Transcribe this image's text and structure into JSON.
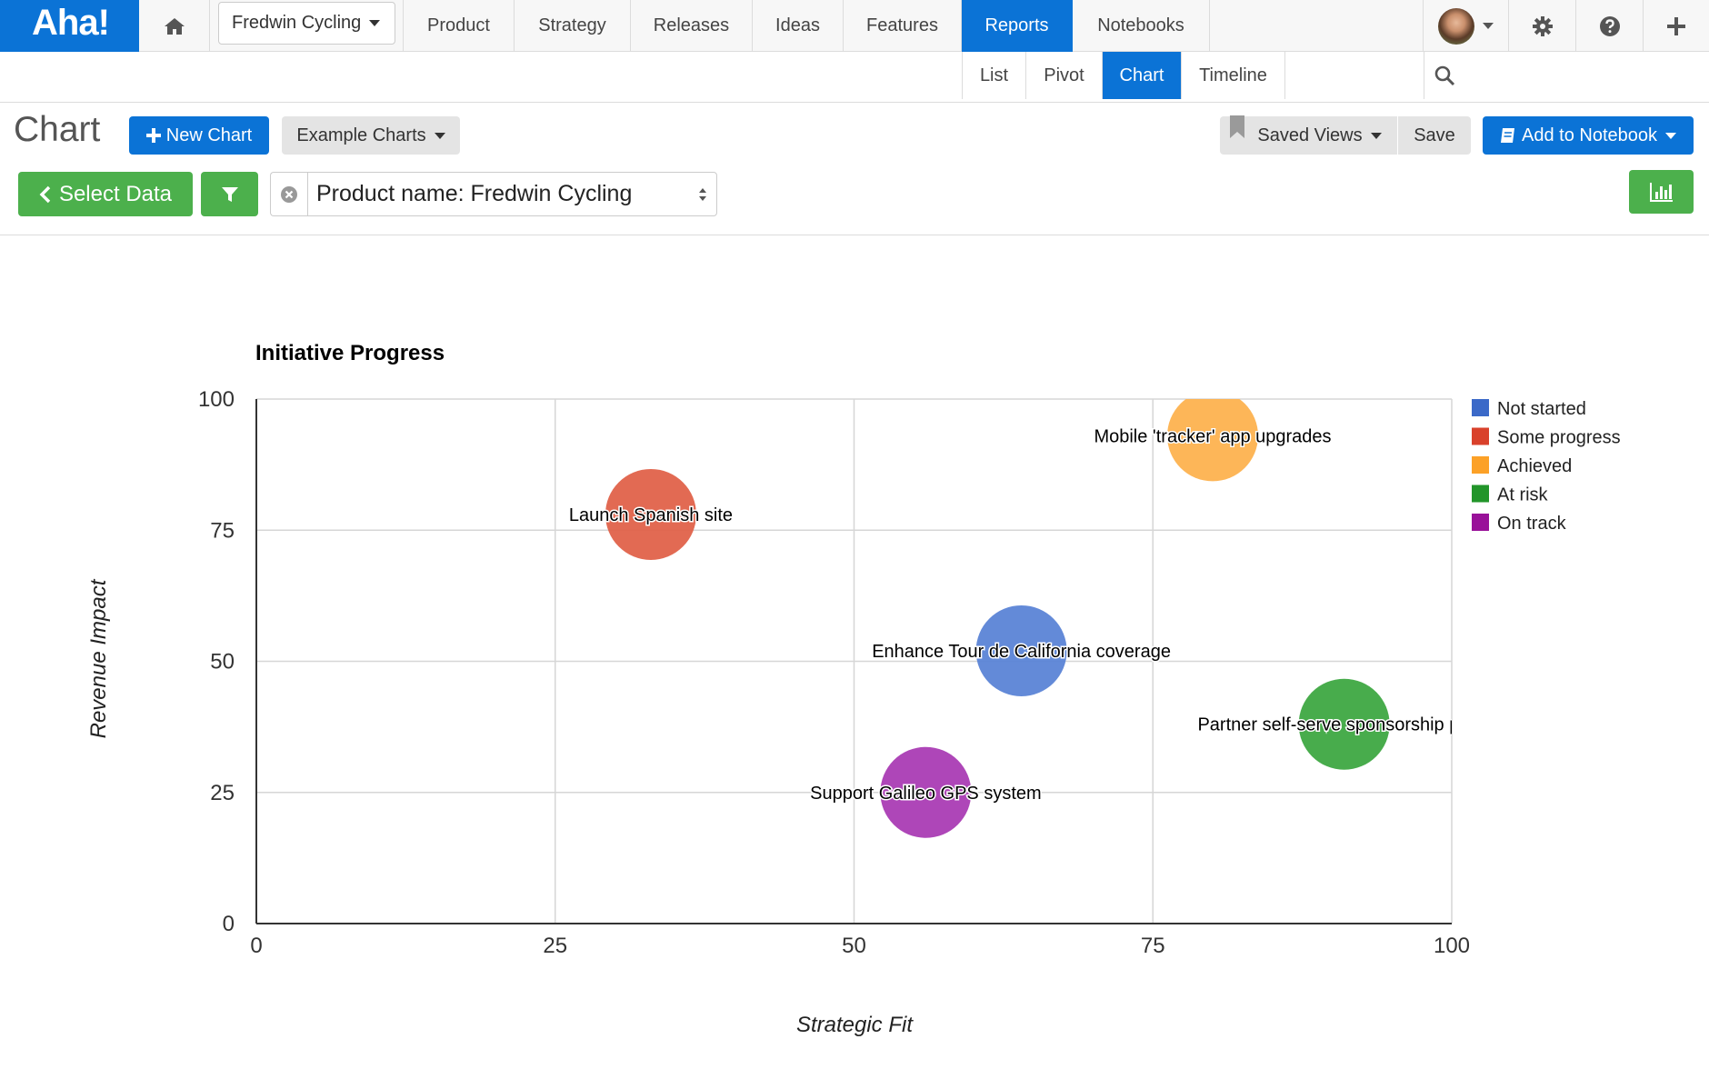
{
  "app": {
    "logo": "Aha!"
  },
  "topnav": {
    "product_selector": "Fredwin Cycling",
    "items": [
      {
        "label": "Product"
      },
      {
        "label": "Strategy"
      },
      {
        "label": "Releases"
      },
      {
        "label": "Ideas"
      },
      {
        "label": "Features"
      },
      {
        "label": "Reports",
        "active": true
      },
      {
        "label": "Notebooks"
      }
    ]
  },
  "subnav": {
    "tabs": [
      {
        "label": "List"
      },
      {
        "label": "Pivot"
      },
      {
        "label": "Chart",
        "active": true
      },
      {
        "label": "Timeline"
      }
    ]
  },
  "toolbar": {
    "title": "Chart",
    "new_chart": "New Chart",
    "example_charts": "Example Charts",
    "saved_views": "Saved Views",
    "save": "Save",
    "add_to_notebook": "Add to Notebook",
    "select_data": "Select Data",
    "filter_value": "Product name: Fredwin Cycling"
  },
  "colors": {
    "brand_blue": "#0b73d6",
    "green": "#4cb04c"
  },
  "chart_data": {
    "type": "scatter",
    "title": "Initiative Progress",
    "xlabel": "Strategic Fit",
    "ylabel": "Revenue Impact",
    "xlim": [
      0,
      100
    ],
    "ylim": [
      0,
      100
    ],
    "xticks": [
      0,
      25,
      50,
      75,
      100
    ],
    "yticks": [
      0,
      25,
      50,
      75,
      100
    ],
    "grid": true,
    "legend_position": "right",
    "legend": [
      {
        "name": "Not started",
        "color": "#3b69c8"
      },
      {
        "name": "Some progress",
        "color": "#d9412b"
      },
      {
        "name": "Achieved",
        "color": "#fca127"
      },
      {
        "name": "At risk",
        "color": "#22952a"
      },
      {
        "name": "On track",
        "color": "#991199"
      }
    ],
    "points": [
      {
        "label": "Launch Spanish site",
        "x": 33,
        "y": 78,
        "status": "Some progress",
        "color": "#e0624a"
      },
      {
        "label": "Mobile 'tracker' app upgrades",
        "x": 80,
        "y": 93,
        "status": "Achieved",
        "color": "#fdb24f"
      },
      {
        "label": "Enhance Tour de California coverage",
        "x": 64,
        "y": 52,
        "status": "Not started",
        "color": "#5b84d6"
      },
      {
        "label": "Partner self-serve sponsorship porta",
        "x": 91,
        "y": 38,
        "status": "At risk",
        "color": "#3ea842"
      },
      {
        "label": "Support Galileo GPS system",
        "x": 56,
        "y": 25,
        "status": "On track",
        "color": "#aa3cb4"
      }
    ]
  }
}
